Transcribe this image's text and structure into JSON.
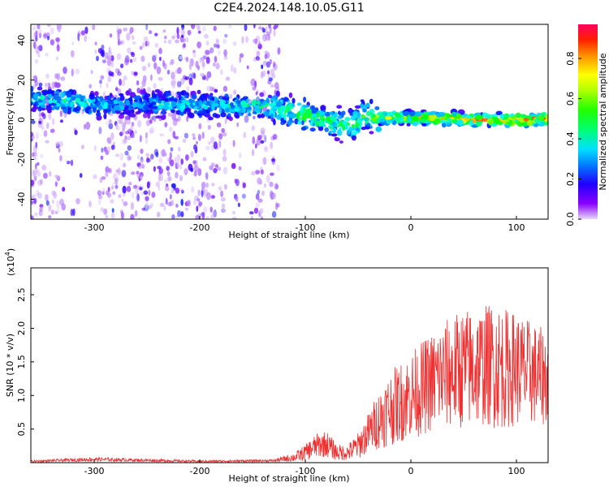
{
  "title": "C2E4.2024.148.10.05.G11",
  "chart_data": [
    {
      "type": "heatmap",
      "xlabel": "Height of straight line (km)",
      "ylabel": "Frequency (Hz)",
      "xlim": [
        -360,
        130
      ],
      "ylim": [
        -50,
        48
      ],
      "x_ticks": [
        -300,
        -200,
        -100,
        0,
        100
      ],
      "y_ticks": [
        -40,
        -20,
        0,
        20,
        40
      ],
      "colorbar": {
        "label": "Normalized spectral amplitude",
        "range": [
          0,
          0.97
        ],
        "ticks": [
          "0.0",
          "0.2",
          "0.4",
          "0.6",
          "0.8"
        ],
        "colormap": [
          "#e0c8f8",
          "#7000ff",
          "#0000ff",
          "#00a0ff",
          "#00ffff",
          "#00ff60",
          "#00ff00",
          "#a0ff00",
          "#ffff00",
          "#ffa000",
          "#ff2000",
          "#ff0060"
        ]
      },
      "band": {
        "x": [
          -355,
          -320,
          -290,
          -260,
          -220,
          -180,
          -150,
          -130,
          -110,
          -90,
          -70,
          -55,
          -45,
          -35,
          -20,
          0,
          30,
          60,
          90,
          130
        ],
        "center_hz": [
          11,
          9,
          7,
          8,
          8,
          7,
          7,
          6,
          4,
          1,
          -2,
          -3,
          2,
          1,
          1,
          1,
          0.5,
          0,
          0,
          0
        ],
        "peak_amplitude": [
          0.45,
          0.5,
          0.4,
          0.35,
          0.45,
          0.45,
          0.5,
          0.55,
          0.6,
          0.6,
          0.55,
          0.6,
          0.6,
          0.7,
          0.75,
          0.8,
          0.85,
          0.9,
          0.9,
          0.95
        ]
      }
    },
    {
      "type": "line",
      "xlabel": "Height of straight line (km)",
      "ylabel": "SNR (10 * v/v)",
      "y_multiplier": "(x10",
      "y_multiplier_exp": "4",
      "y_multiplier_close": ")",
      "xlim": [
        -360,
        130
      ],
      "ylim": [
        0,
        29000
      ],
      "x_ticks": [
        -300,
        -200,
        -100,
        0,
        100
      ],
      "y_ticks": [
        "0.5",
        "1.0",
        "1.5",
        "2.0",
        "2.5"
      ],
      "line_color": "#ee3030",
      "envelope": {
        "x": [
          -360,
          -300,
          -200,
          -130,
          -110,
          -100,
          -90,
          -80,
          -70,
          -60,
          -50,
          -40,
          -30,
          -20,
          -10,
          0,
          10,
          20,
          30,
          40,
          50,
          60,
          70,
          80,
          90,
          100,
          110,
          120,
          130
        ],
        "mean": [
          200,
          500,
          200,
          300,
          800,
          1500,
          2500,
          2800,
          1500,
          1500,
          2500,
          4500,
          6500,
          8000,
          9000,
          10000,
          11000,
          12000,
          13000,
          13500,
          14000,
          14000,
          14500,
          14500,
          14000,
          14000,
          13500,
          13000,
          12500
        ],
        "spread": [
          150,
          300,
          150,
          200,
          700,
          1200,
          1800,
          2000,
          1200,
          1200,
          2000,
          3000,
          4500,
          5500,
          6000,
          6500,
          7000,
          7500,
          8000,
          8500,
          9000,
          9000,
          9000,
          9500,
          9000,
          8500,
          8000,
          7500,
          7000
        ]
      }
    }
  ]
}
